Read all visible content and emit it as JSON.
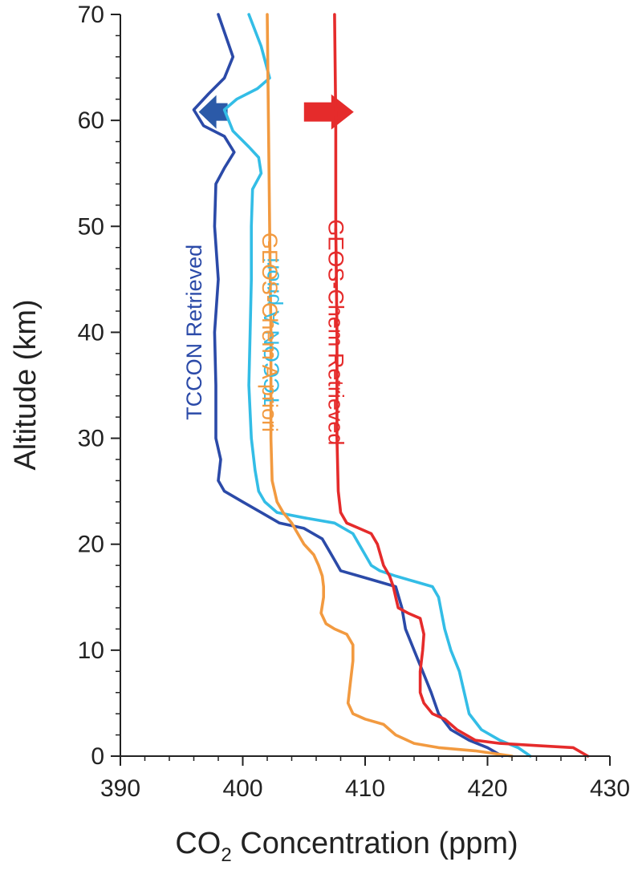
{
  "chart_data": {
    "type": "line",
    "ylabel": "Altitude (km)",
    "xlabel_main": "CO",
    "xlabel_sub": "2",
    "xlabel_rest": " Concentration (ppm)",
    "xlim": [
      390,
      430
    ],
    "ylim": [
      0,
      70
    ],
    "xticks": [
      "390",
      "400",
      "410",
      "420",
      "430"
    ],
    "yticks": [
      "0",
      "10",
      "20",
      "30",
      "40",
      "50",
      "60",
      "70"
    ],
    "grid": false,
    "series": [
      {
        "name": "TCCON Retrieved",
        "color": "#2b4aa8",
        "points": [
          [
            398.0,
            70
          ],
          [
            399.2,
            66
          ],
          [
            398.5,
            64
          ],
          [
            397.2,
            62.5
          ],
          [
            396.0,
            61
          ],
          [
            396.8,
            59.5
          ],
          [
            398.5,
            58.5
          ],
          [
            399.3,
            57
          ],
          [
            398.5,
            55.5
          ],
          [
            397.8,
            54
          ],
          [
            397.7,
            50
          ],
          [
            398.0,
            45
          ],
          [
            397.7,
            40
          ],
          [
            397.8,
            35
          ],
          [
            397.8,
            30
          ],
          [
            398.2,
            28
          ],
          [
            398.0,
            26
          ],
          [
            398.5,
            25
          ],
          [
            400.0,
            24
          ],
          [
            401.5,
            23
          ],
          [
            403.0,
            22
          ],
          [
            405.0,
            21.5
          ],
          [
            406.5,
            20.5
          ],
          [
            407.0,
            19.5
          ],
          [
            407.5,
            18.5
          ],
          [
            408.0,
            17.5
          ],
          [
            409.5,
            17
          ],
          [
            411.0,
            16.5
          ],
          [
            412.5,
            16
          ],
          [
            413.0,
            14
          ],
          [
            413.3,
            12
          ],
          [
            414.0,
            10
          ],
          [
            414.7,
            8
          ],
          [
            415.4,
            6
          ],
          [
            416.0,
            4
          ],
          [
            417.0,
            2.5
          ],
          [
            418.5,
            1.5
          ],
          [
            420.0,
            0.8
          ],
          [
            421.2,
            0
          ]
        ]
      },
      {
        "name": "TCCON A priori",
        "color": "#33bde6",
        "points": [
          [
            400.5,
            70
          ],
          [
            401.5,
            67
          ],
          [
            402.2,
            64
          ],
          [
            401.2,
            63
          ],
          [
            399.5,
            62
          ],
          [
            398.5,
            61
          ],
          [
            399.2,
            59
          ],
          [
            400.5,
            57.5
          ],
          [
            401.3,
            56.5
          ],
          [
            401.5,
            55
          ],
          [
            400.8,
            53.5
          ],
          [
            400.7,
            50
          ],
          [
            400.7,
            45
          ],
          [
            400.6,
            40
          ],
          [
            400.5,
            35
          ],
          [
            400.7,
            30
          ],
          [
            401.0,
            27
          ],
          [
            401.3,
            25
          ],
          [
            401.8,
            24
          ],
          [
            402.8,
            23
          ],
          [
            405.0,
            22.5
          ],
          [
            407.5,
            22
          ],
          [
            409.0,
            21
          ],
          [
            409.5,
            20
          ],
          [
            410.0,
            19
          ],
          [
            410.5,
            18
          ],
          [
            411.2,
            17.5
          ],
          [
            412.5,
            17
          ],
          [
            414.0,
            16.5
          ],
          [
            415.5,
            16
          ],
          [
            416.0,
            15
          ],
          [
            416.5,
            12
          ],
          [
            417.0,
            10
          ],
          [
            417.7,
            8
          ],
          [
            418.1,
            6
          ],
          [
            418.5,
            4
          ],
          [
            419.5,
            2.5
          ],
          [
            421.0,
            1.5
          ],
          [
            422.5,
            0.8
          ],
          [
            423.5,
            0
          ]
        ]
      },
      {
        "name": "GEOS-Chem A priori",
        "color": "#f29a40",
        "points": [
          [
            402.0,
            70
          ],
          [
            402.1,
            60
          ],
          [
            402.2,
            50
          ],
          [
            402.3,
            40
          ],
          [
            402.3,
            30
          ],
          [
            402.4,
            26
          ],
          [
            402.8,
            24
          ],
          [
            403.3,
            23
          ],
          [
            404.0,
            22
          ],
          [
            404.5,
            21
          ],
          [
            405.0,
            20
          ],
          [
            405.8,
            19
          ],
          [
            406.2,
            18
          ],
          [
            406.5,
            17
          ],
          [
            406.6,
            16
          ],
          [
            406.6,
            15
          ],
          [
            406.4,
            13.5
          ],
          [
            406.8,
            12.5
          ],
          [
            407.5,
            12
          ],
          [
            408.5,
            11.5
          ],
          [
            409.0,
            10.5
          ],
          [
            409.0,
            9
          ],
          [
            408.8,
            7
          ],
          [
            408.6,
            5
          ],
          [
            409.0,
            4
          ],
          [
            410.0,
            3.5
          ],
          [
            411.5,
            3
          ],
          [
            412.5,
            2
          ],
          [
            414.0,
            1.2
          ],
          [
            416.0,
            0.8
          ],
          [
            419.0,
            0.5
          ],
          [
            422.0,
            0
          ]
        ]
      },
      {
        "name": "GEOS-Chem Retrieved",
        "color": "#e52b2b",
        "points": [
          [
            407.5,
            70
          ],
          [
            407.6,
            60
          ],
          [
            407.6,
            50
          ],
          [
            407.7,
            40
          ],
          [
            407.7,
            30
          ],
          [
            407.8,
            25
          ],
          [
            408.0,
            23
          ],
          [
            408.5,
            22
          ],
          [
            409.5,
            21.5
          ],
          [
            410.5,
            21
          ],
          [
            411.0,
            20
          ],
          [
            411.5,
            18
          ],
          [
            412.0,
            17
          ],
          [
            412.3,
            16
          ],
          [
            412.5,
            15
          ],
          [
            412.7,
            14
          ],
          [
            413.5,
            13.5
          ],
          [
            414.5,
            13
          ],
          [
            414.8,
            11.5
          ],
          [
            414.7,
            10
          ],
          [
            414.5,
            8
          ],
          [
            414.5,
            6
          ],
          [
            414.8,
            5
          ],
          [
            415.5,
            4
          ],
          [
            416.5,
            3.5
          ],
          [
            417.5,
            2.5
          ],
          [
            419.0,
            1.5
          ],
          [
            421.0,
            1.2
          ],
          [
            424.0,
            1
          ],
          [
            427.0,
            0.8
          ],
          [
            428.2,
            0
          ]
        ]
      }
    ],
    "annotations": [
      {
        "type": "arrow-left",
        "color": "#2b5aa8",
        "x": 398.5,
        "y": 60.8
      },
      {
        "type": "arrow-right",
        "color": "#e52b2b",
        "x": 405.0,
        "y": 60.8
      }
    ]
  }
}
